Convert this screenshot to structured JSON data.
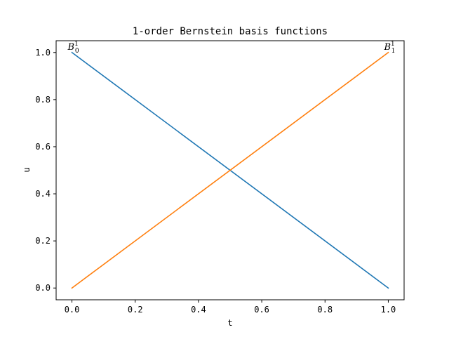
{
  "chart_data": {
    "type": "line",
    "title": "1-order Bernstein basis functions",
    "xlabel": "t",
    "ylabel": "u",
    "xlim": [
      -0.05,
      1.05
    ],
    "ylim": [
      -0.05,
      1.05
    ],
    "xticks": [
      0.0,
      0.2,
      0.4,
      0.6,
      0.8,
      1.0
    ],
    "xtick_labels": [
      "0.0",
      "0.2",
      "0.4",
      "0.6",
      "0.8",
      "1.0"
    ],
    "yticks": [
      0.0,
      0.2,
      0.4,
      0.6,
      0.8,
      1.0
    ],
    "ytick_labels": [
      "0.0",
      "0.2",
      "0.4",
      "0.6",
      "0.8",
      "1.0"
    ],
    "grid": false,
    "series": [
      {
        "color": "#1f77b4",
        "x": [
          0.0,
          1.0
        ],
        "y": [
          1.0,
          0.0
        ]
      },
      {
        "color": "#ff7f0e",
        "x": [
          0.0,
          1.0
        ],
        "y": [
          0.0,
          1.0
        ]
      }
    ],
    "annotations": [
      {
        "base": "B",
        "sub": "0",
        "sup": "1",
        "x": 0.0,
        "y": 1.0
      },
      {
        "base": "B",
        "sub": "1",
        "sup": "1",
        "x": 1.0,
        "y": 1.0
      }
    ]
  }
}
